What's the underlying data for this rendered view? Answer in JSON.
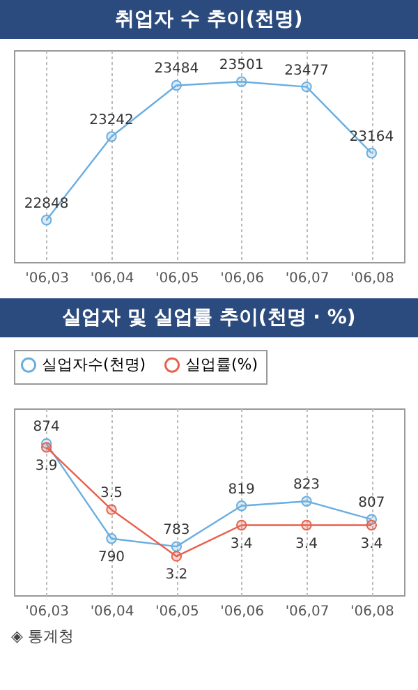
{
  "chart_data": [
    {
      "type": "line",
      "title": "취업자 수 추이(천명)",
      "categories": [
        "'06,03",
        "'06,04",
        "'06,05",
        "'06,06",
        "'06,07",
        "'06,08"
      ],
      "values": [
        22848,
        23242,
        23484,
        23501,
        23477,
        23164
      ],
      "color": "#6aaee0",
      "ylim": [
        22650,
        23650
      ],
      "tick_labels": "x",
      "grid": "x",
      "marker": "circle",
      "data_labels": true
    },
    {
      "type": "line",
      "title": "실업자 및 실업률 추이(천명 · %)",
      "categories": [
        "'06,03",
        "'06,04",
        "'06,05",
        "'06,06",
        "'06,07",
        "'06,08"
      ],
      "series": [
        {
          "name": "실업자수(천명)",
          "color": "#6aaee0",
          "values": [
            874,
            790,
            783,
            819,
            823,
            807
          ]
        },
        {
          "name": "실업률(%)",
          "color": "#e8604c",
          "values": [
            3.9,
            3.5,
            3.2,
            3.4,
            3.4,
            3.4
          ],
          "axis": "y2"
        }
      ],
      "ylim": [
        740,
        905
      ],
      "y2lim": [
        2.95,
        4.15
      ],
      "tick_labels": "x",
      "grid": "x",
      "marker": "circle",
      "data_labels": true,
      "legend": "top left",
      "annotations": [
        "◈ 통계청"
      ]
    }
  ]
}
